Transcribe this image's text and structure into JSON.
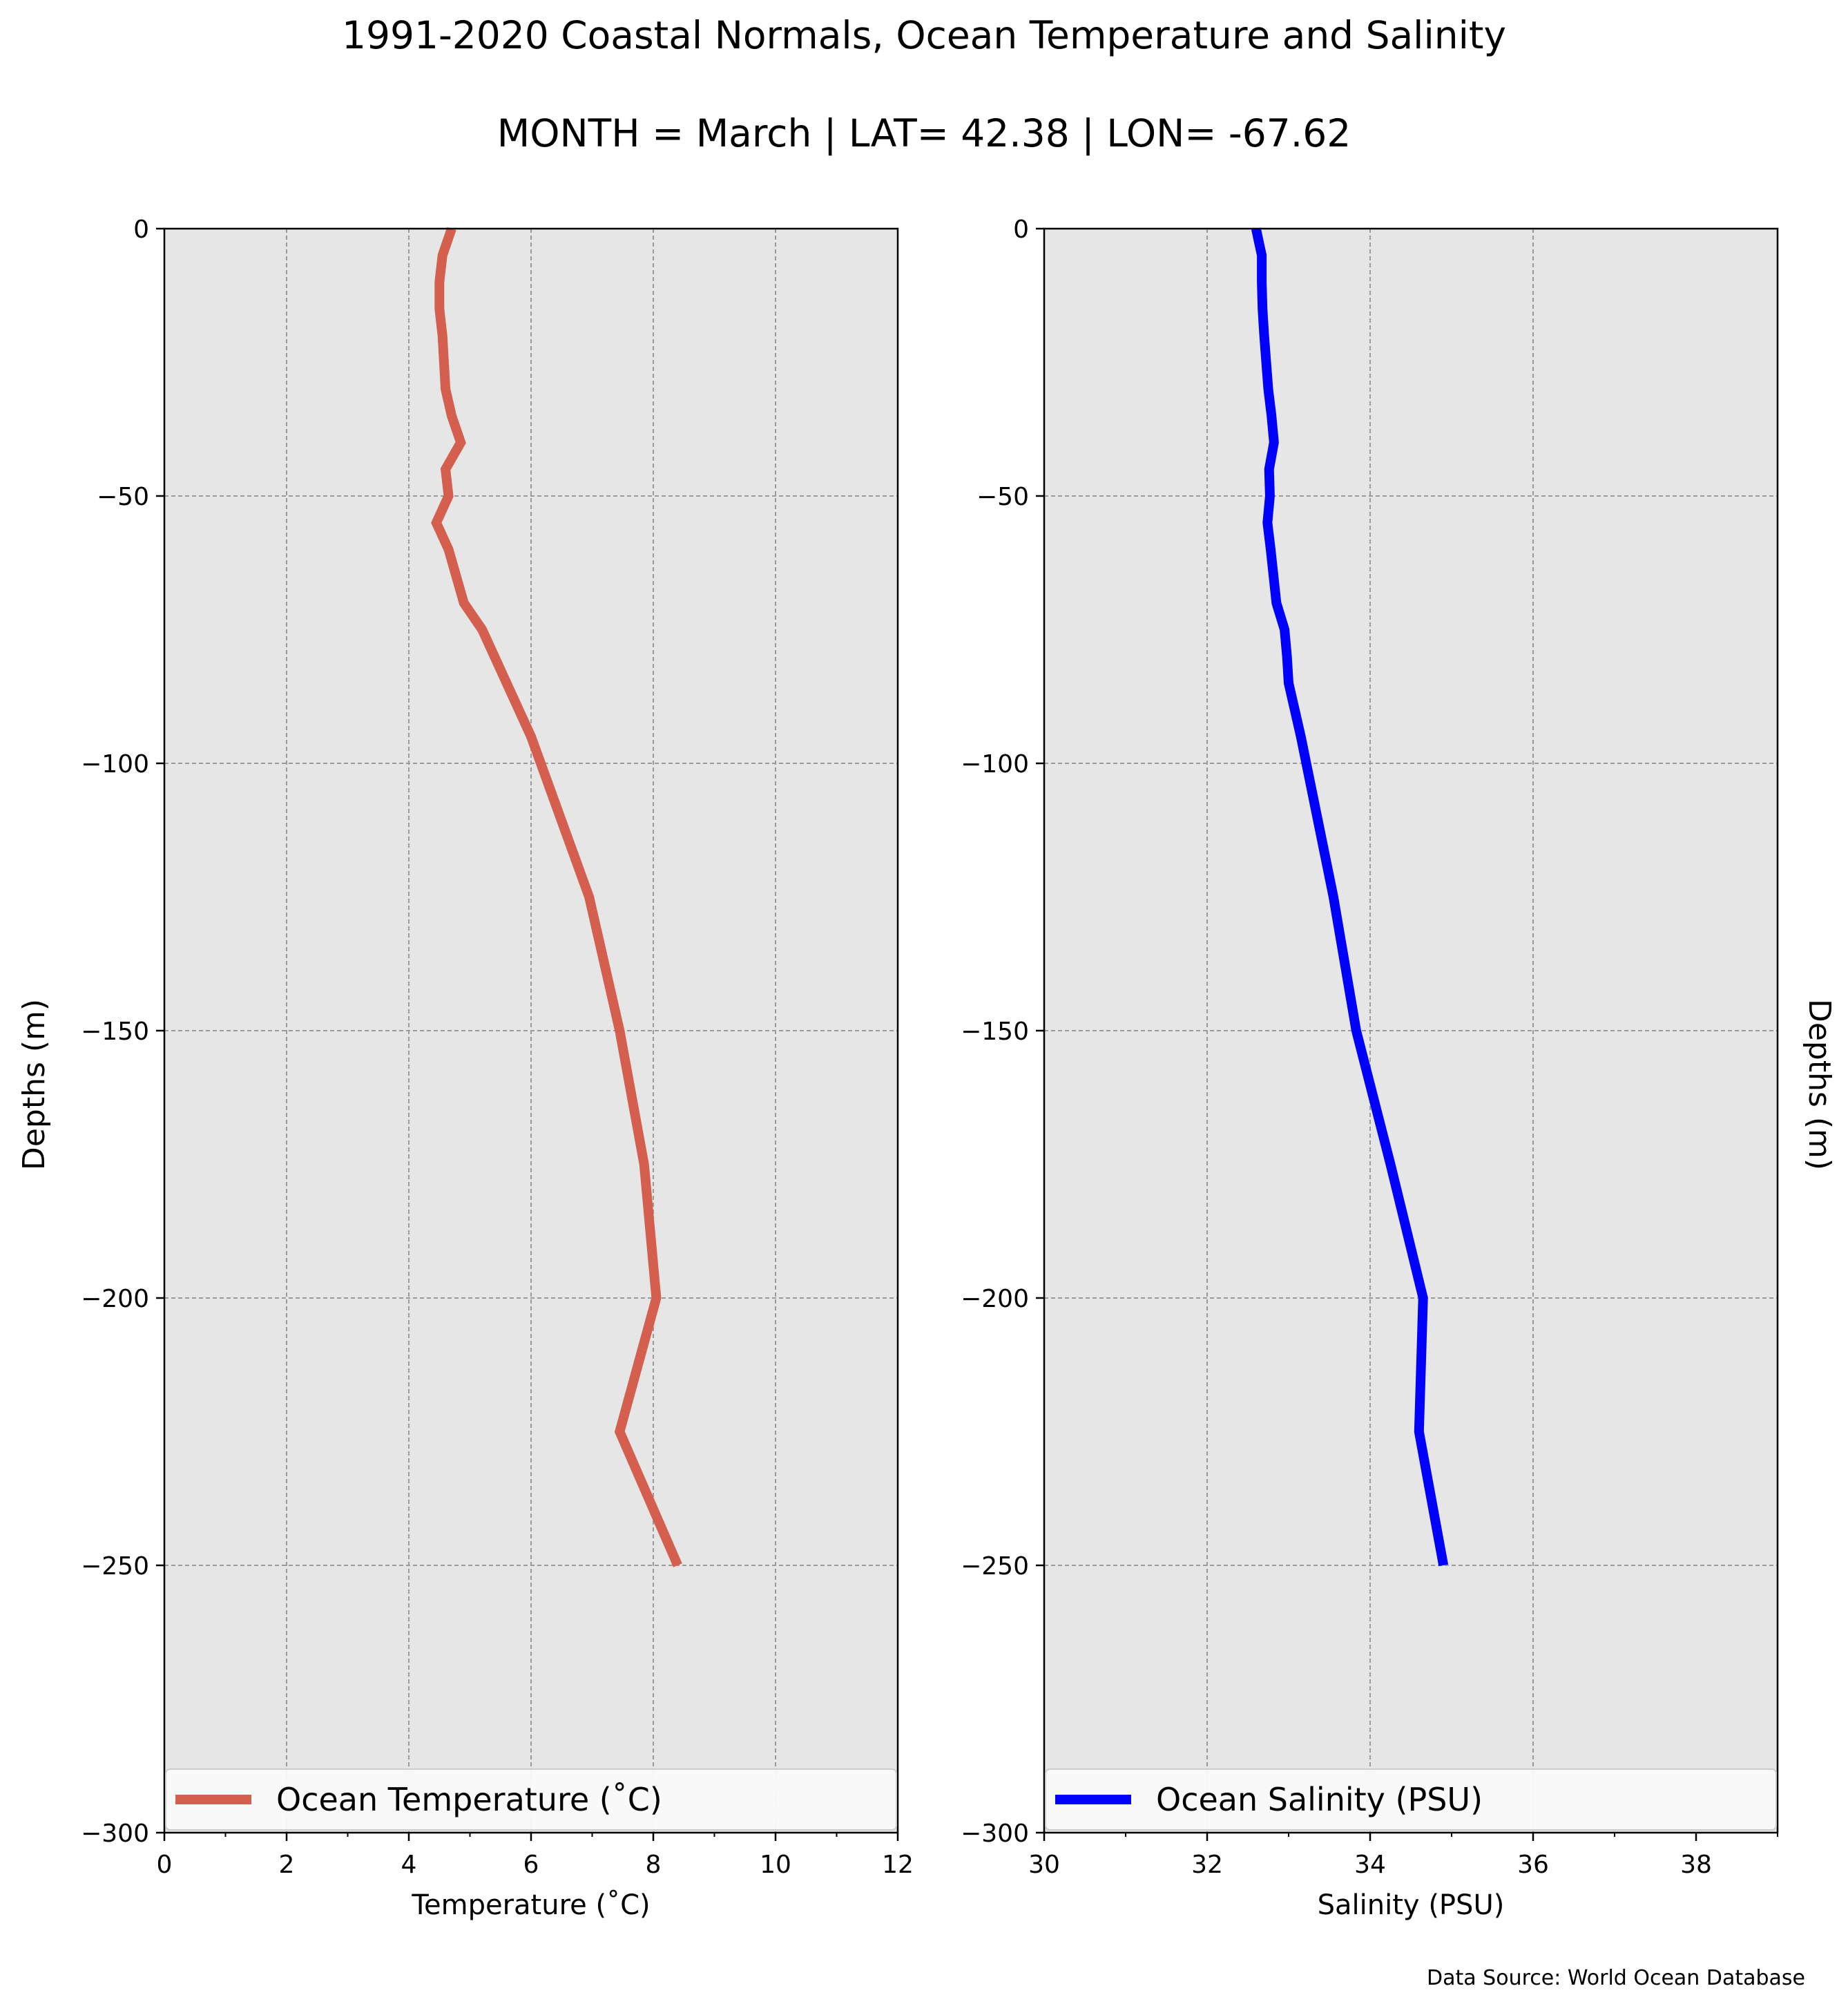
{
  "title": "1991-2020 Coastal Normals, Ocean Temperature and Salinity",
  "subtitle": "MONTH = March | LAT= 42.38 | LON= -67.62",
  "source": "Data Source: World Ocean Database",
  "colors": {
    "temperature": "#d45f4e",
    "salinity": "#0000ff",
    "axes_bg": "#e6e6e6",
    "grid": "#9a9a9a"
  },
  "chart_data": [
    {
      "type": "line",
      "xlabel": "Temperature (˚C)",
      "ylabel": "Depths (m)",
      "xlim": [
        0,
        12
      ],
      "ylim": [
        -300,
        0
      ],
      "xticks": [
        0,
        2,
        4,
        6,
        8,
        10,
        12
      ],
      "xtick_labels": [
        "0",
        "2",
        "4",
        "6",
        "8",
        "10",
        "12"
      ],
      "yticks": [
        0,
        -50,
        -100,
        -150,
        -200,
        -250,
        -300
      ],
      "ytick_labels": [
        "0",
        "−50",
        "−100",
        "−150",
        "−200",
        "−250",
        "−300"
      ],
      "grid": true,
      "legend_position": "lower center",
      "series": [
        {
          "name": "Ocean Temperature (˚C)",
          "color": "#d45f4e",
          "x": [
            4.7,
            4.55,
            4.5,
            4.5,
            4.55,
            4.6,
            4.7,
            4.85,
            4.6,
            4.65,
            4.45,
            4.65,
            4.9,
            5.2,
            5.4,
            5.6,
            6.0,
            6.95,
            7.45,
            7.85,
            8.05,
            7.45,
            8.4
          ],
          "y": [
            0,
            -5,
            -10,
            -15,
            -20,
            -30,
            -35,
            -40,
            -45,
            -50,
            -55,
            -60,
            -70,
            -75,
            -80,
            -85,
            -95,
            -125,
            -150,
            -175,
            -200,
            -225,
            -250
          ]
        }
      ]
    },
    {
      "type": "line",
      "xlabel": "Salinity (PSU)",
      "ylabel": "Depths (m)",
      "xlim": [
        30,
        39
      ],
      "ylim": [
        -300,
        0
      ],
      "xticks": [
        30,
        32,
        34,
        36,
        38
      ],
      "xtick_labels": [
        "30",
        "32",
        "34",
        "36",
        "38"
      ],
      "yticks": [
        0,
        -50,
        -100,
        -150,
        -200,
        -250,
        -300
      ],
      "ytick_labels": [
        "0",
        "−50",
        "−100",
        "−150",
        "−200",
        "−250",
        "−300"
      ],
      "grid": true,
      "legend_position": "lower center",
      "series": [
        {
          "name": "Ocean Salinity (PSU)",
          "color": "#0000ff",
          "x": [
            32.6,
            32.67,
            32.67,
            32.68,
            32.7,
            32.75,
            32.79,
            32.82,
            32.76,
            32.77,
            32.74,
            32.78,
            32.85,
            32.95,
            32.98,
            33.0,
            33.15,
            33.55,
            33.83,
            34.25,
            34.65,
            34.6,
            34.9
          ],
          "y": [
            0,
            -5,
            -10,
            -15,
            -20,
            -30,
            -35,
            -40,
            -45,
            -50,
            -55,
            -60,
            -70,
            -75,
            -80,
            -85,
            -95,
            -125,
            -150,
            -175,
            -200,
            -225,
            -250
          ]
        }
      ]
    }
  ]
}
